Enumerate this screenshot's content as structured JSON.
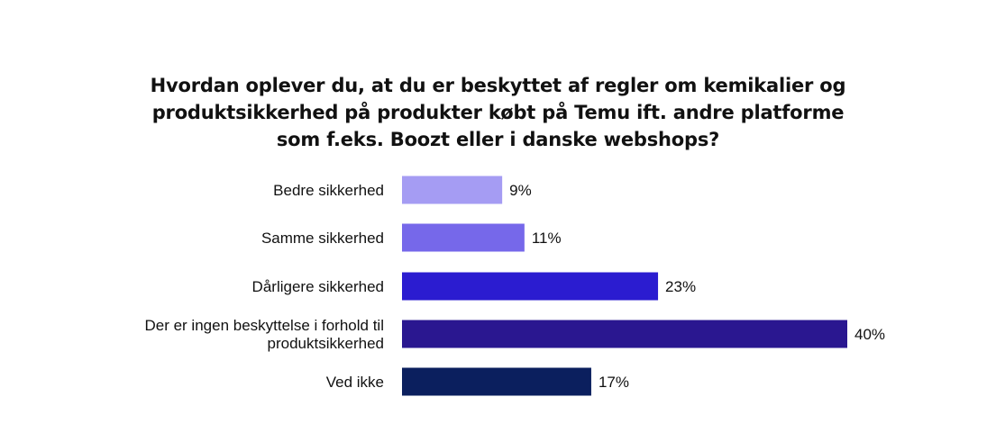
{
  "title_lines": [
    "Hvordan oplever du, at du er beskyttet af regler om kemikalier og",
    "produktsikkerhed på produkter købt på Temu ift. andre platforme",
    "som f.eks. Boozt eller i danske webshops?"
  ],
  "chart_data": {
    "type": "bar",
    "orientation": "horizontal",
    "title": "Hvordan oplever du, at du er beskyttet af regler om kemikalier og produktsikkerhed på produkter købt på Temu ift. andre platforme som f.eks. Boozt eller i danske webshops?",
    "categories": [
      [
        "Bedre sikkerhed"
      ],
      [
        "Samme sikkerhed"
      ],
      [
        "Dårligere sikkerhed"
      ],
      [
        "Der er ingen beskyttelse i forhold til",
        "produktsikkerhed"
      ],
      [
        "Ved ikke"
      ]
    ],
    "values": [
      9,
      11,
      23,
      40,
      17
    ],
    "value_labels": [
      "9%",
      "11%",
      "23%",
      "40%",
      "17%"
    ],
    "colors": [
      "#a59cf3",
      "#7668ea",
      "#2b1cd0",
      "#2a1790",
      "#0b1f5e"
    ],
    "unit": "%",
    "xlim": [
      0,
      40
    ],
    "grid": false,
    "legend": "none"
  }
}
